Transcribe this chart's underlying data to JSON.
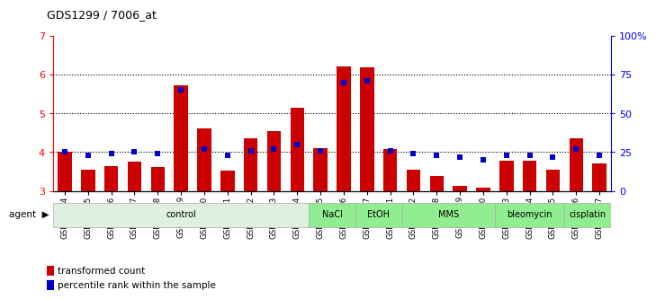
{
  "title": "GDS1299 / 7006_at",
  "samples": [
    "GSM40714",
    "GSM40715",
    "GSM40716",
    "GSM40717",
    "GSM40718",
    "GSM40719",
    "GSM40720",
    "GSM40721",
    "GSM40722",
    "GSM40723",
    "GSM40724",
    "GSM40725",
    "GSM40726",
    "GSM40727",
    "GSM40731",
    "GSM40732",
    "GSM40728",
    "GSM40729",
    "GSM40730",
    "GSM40733",
    "GSM40734",
    "GSM40735",
    "GSM40736",
    "GSM40737"
  ],
  "red_values": [
    4.0,
    3.55,
    3.65,
    3.75,
    3.62,
    5.72,
    4.62,
    3.52,
    4.35,
    4.55,
    5.15,
    4.1,
    6.22,
    6.18,
    4.08,
    3.55,
    3.38,
    3.12,
    3.08,
    3.78,
    3.78,
    3.55,
    4.35,
    3.72
  ],
  "blue_values": [
    25.0,
    23.0,
    24.0,
    25.0,
    24.0,
    65.0,
    27.0,
    23.0,
    26.0,
    27.0,
    30.0,
    26.0,
    70.0,
    71.0,
    26.0,
    24.0,
    23.0,
    22.0,
    20.0,
    23.0,
    23.0,
    22.0,
    27.0,
    23.0
  ],
  "agents": [
    {
      "label": "control",
      "start": 0,
      "end": 11,
      "color": "#dff0df"
    },
    {
      "label": "NaCl",
      "start": 11,
      "end": 13,
      "color": "#90EE90"
    },
    {
      "label": "EtOH",
      "start": 13,
      "end": 15,
      "color": "#90EE90"
    },
    {
      "label": "MMS",
      "start": 15,
      "end": 19,
      "color": "#90EE90"
    },
    {
      "label": "bleomycin",
      "start": 19,
      "end": 22,
      "color": "#90EE90"
    },
    {
      "label": "cisplatin",
      "start": 22,
      "end": 24,
      "color": "#90EE90"
    }
  ],
  "ylim_left": [
    3,
    7
  ],
  "ylim_right": [
    0,
    100
  ],
  "yticks_left": [
    3,
    4,
    5,
    6,
    7
  ],
  "yticks_right": [
    0,
    25,
    50,
    75,
    100
  ],
  "ytick_labels_right": [
    "0",
    "25",
    "50",
    "75",
    "100%"
  ],
  "bar_color": "#cc0000",
  "dot_color": "#0000cc",
  "background_color": "#ffffff",
  "legend_red": "transformed count",
  "legend_blue": "percentile rank within the sample",
  "grid_yticks": [
    4,
    5,
    6
  ]
}
